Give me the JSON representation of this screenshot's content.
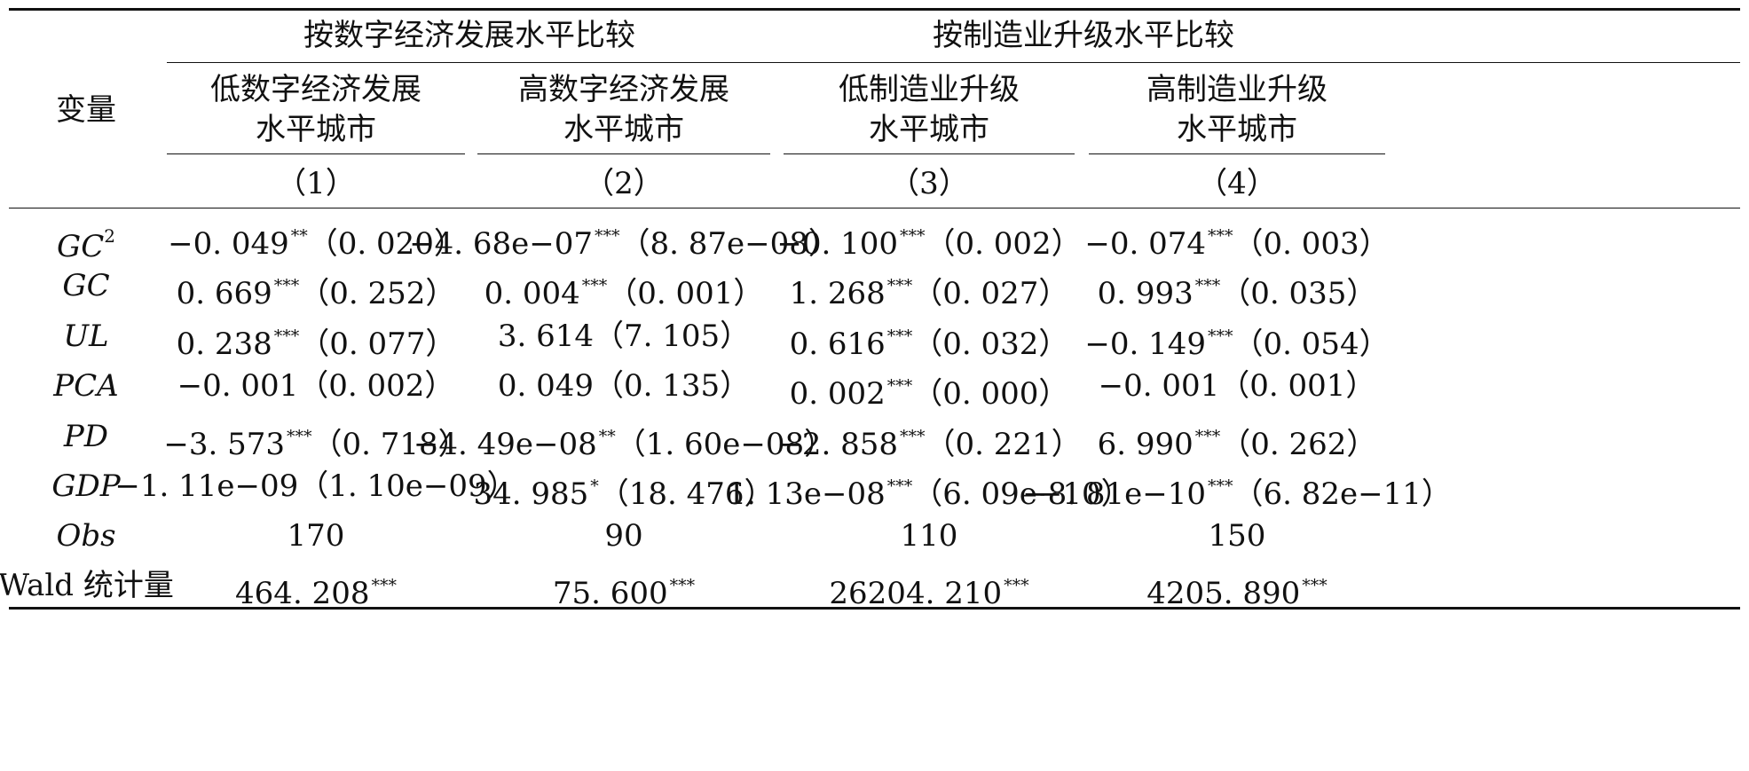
{
  "headers": {
    "variable": "变量",
    "group_a": "按数字经济发展水平比较",
    "group_b": "按制造业升级水平比较",
    "columns": [
      {
        "line1": "低数字经济发展",
        "line2": "水平城市",
        "num": "（1）"
      },
      {
        "line1": "高数字经济发展",
        "line2": "水平城市",
        "num": "（2）"
      },
      {
        "line1": "低制造业升级",
        "line2": "水平城市",
        "num": "（3）"
      },
      {
        "line1": "高制造业升级",
        "line2": "水平城市",
        "num": "（4）"
      }
    ]
  },
  "rows": [
    {
      "var": "GC",
      "var_sup": "2",
      "cells": [
        {
          "v": "−0. 049",
          "s": "**",
          "se": "（0. 020）"
        },
        {
          "v": "−4. 68e−07",
          "s": "***",
          "se": "（8. 87e−08）"
        },
        {
          "v": "−0. 100",
          "s": "***",
          "se": "（0. 002）"
        },
        {
          "v": "−0. 074",
          "s": "***",
          "se": "（0. 003）"
        }
      ]
    },
    {
      "var": "GC",
      "var_sup": "",
      "cells": [
        {
          "v": "0. 669",
          "s": "***",
          "se": "（0. 252）"
        },
        {
          "v": "0. 004",
          "s": "***",
          "se": "（0. 001）"
        },
        {
          "v": "1. 268",
          "s": "***",
          "se": "（0. 027）"
        },
        {
          "v": "0. 993",
          "s": "***",
          "se": "（0. 035）"
        }
      ]
    },
    {
      "var": "UL",
      "var_sup": "",
      "cells": [
        {
          "v": "0. 238",
          "s": "***",
          "se": "（0. 077）"
        },
        {
          "v": "3. 614",
          "s": "",
          "se": "（7. 105）"
        },
        {
          "v": "0. 616",
          "s": "***",
          "se": "（0. 032）"
        },
        {
          "v": "−0. 149",
          "s": "***",
          "se": "（0. 054）"
        }
      ]
    },
    {
      "var": "PCA",
      "var_sup": "",
      "cells": [
        {
          "v": "−0. 001",
          "s": "",
          "se": "（0. 002）"
        },
        {
          "v": "0. 049",
          "s": "",
          "se": "（0. 135）"
        },
        {
          "v": "0. 002",
          "s": "***",
          "se": "（0. 000）"
        },
        {
          "v": "−0. 001",
          "s": "",
          "se": "（0. 001）"
        }
      ]
    },
    {
      "var": "PD",
      "var_sup": "",
      "cells": [
        {
          "v": "−3. 573",
          "s": "***",
          "se": "（0. 718）"
        },
        {
          "v": "−4. 49e−08",
          "s": "**",
          "se": "（1. 60e−08）"
        },
        {
          "v": "−2. 858",
          "s": "***",
          "se": "（0. 221）"
        },
        {
          "v": "6. 990",
          "s": "***",
          "se": "（0. 262）"
        }
      ]
    },
    {
      "var": "GDP",
      "var_sup": "",
      "cells": [
        {
          "v": "−1. 11e−09",
          "s": "",
          "se": "（1. 10e−09）"
        },
        {
          "v": "34. 985",
          "s": "*",
          "se": "（18. 476）"
        },
        {
          "v": "1. 13e−08",
          "s": "***",
          "se": "（6. 09e−10）"
        },
        {
          "v": "−8. 81e−10",
          "s": "***",
          "se": "（6. 82e−11）"
        }
      ]
    },
    {
      "var": "Obs",
      "var_sup": "",
      "cells": [
        {
          "v": "170",
          "s": "",
          "se": ""
        },
        {
          "v": "90",
          "s": "",
          "se": ""
        },
        {
          "v": "110",
          "s": "",
          "se": ""
        },
        {
          "v": "150",
          "s": "",
          "se": ""
        }
      ]
    },
    {
      "var": "Wald 统计量",
      "var_sup": "",
      "upright": true,
      "cells": [
        {
          "v": "464. 208",
          "s": "***",
          "se": ""
        },
        {
          "v": "75. 600",
          "s": "***",
          "se": ""
        },
        {
          "v": "26204. 210",
          "s": "***",
          "se": ""
        },
        {
          "v": "4205. 890",
          "s": "***",
          "se": ""
        }
      ]
    }
  ]
}
